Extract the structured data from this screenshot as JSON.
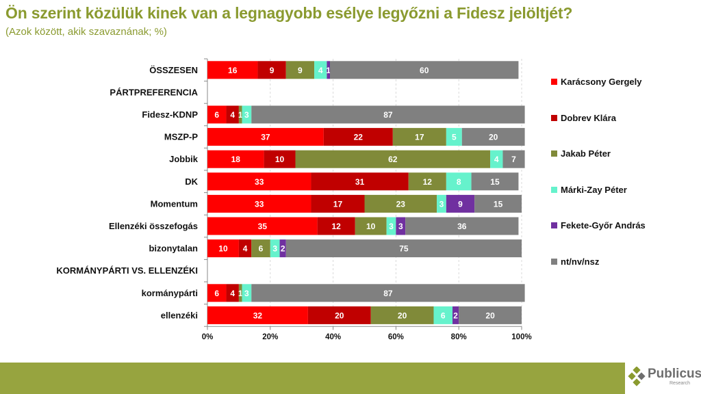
{
  "header": {
    "title": "Ön szerint közülük kinek van a legnagyobb esélye legyőzni a Fidesz jelöltjét?",
    "subtitle": "(Azok között, akik szavaznának; %)"
  },
  "brand": {
    "name": "Publicus",
    "sub": "Research",
    "footer_color": "#97a43f"
  },
  "chart_data": {
    "type": "bar",
    "orientation": "horizontal",
    "stacked": "100%",
    "title": "Ön szerint közülük kinek van a legnagyobb esélye legyőzni a Fidesz jelöltjét?",
    "subtitle": "(Azok között, akik szavaznának; %)",
    "xlabel": "",
    "ylabel": "",
    "xlim": [
      0,
      100
    ],
    "x_ticks": [
      "0%",
      "20%",
      "40%",
      "60%",
      "80%",
      "100%"
    ],
    "grid": true,
    "legend_position": "right",
    "categories": [
      "ÖSSZESEN",
      "PÁRTPREFERENCIA",
      "Fidesz-KDNP",
      "MSZP-P",
      "Jobbik",
      "DK",
      "Momentum",
      "Ellenzéki összefogás",
      "bizonytalan",
      "KORMÁNYPÁRTI VS. ELLENZÉKI",
      "kormánypárti",
      "ellenzéki"
    ],
    "series": [
      {
        "name": "Karácsony Gergely",
        "color": "#ff0000",
        "values": [
          16,
          null,
          6,
          37,
          18,
          33,
          33,
          35,
          10,
          null,
          6,
          32
        ]
      },
      {
        "name": "Dobrev Klára",
        "color": "#c00000",
        "values": [
          9,
          null,
          4,
          22,
          10,
          31,
          17,
          12,
          4,
          null,
          4,
          20
        ]
      },
      {
        "name": "Jakab Péter",
        "color": "#808a39",
        "values": [
          9,
          null,
          1,
          17,
          62,
          12,
          23,
          10,
          6,
          null,
          1,
          20
        ]
      },
      {
        "name": "Márki-Zay Péter",
        "color": "#66f2cc",
        "values": [
          4,
          null,
          3,
          5,
          4,
          8,
          3,
          3,
          3,
          null,
          3,
          6
        ]
      },
      {
        "name": "Fekete-Győr András",
        "color": "#7030a0",
        "values": [
          1,
          null,
          0,
          0,
          0,
          0,
          9,
          3,
          2,
          null,
          0,
          2
        ]
      },
      {
        "name": "nt/nv/nsz",
        "color": "#808080",
        "values": [
          60,
          null,
          87,
          20,
          7,
          15,
          15,
          36,
          75,
          null,
          87,
          20
        ]
      }
    ]
  }
}
